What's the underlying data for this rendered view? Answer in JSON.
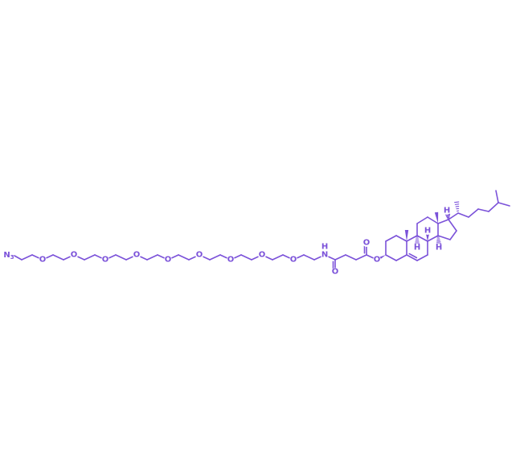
{
  "structure": {
    "color": "#7b52d9",
    "background": "#ffffff",
    "labels": {
      "azide_N": "N",
      "azide_subscript": "3",
      "oxygen": "O",
      "nitrogen": "N",
      "hydrogen": "H"
    }
  }
}
